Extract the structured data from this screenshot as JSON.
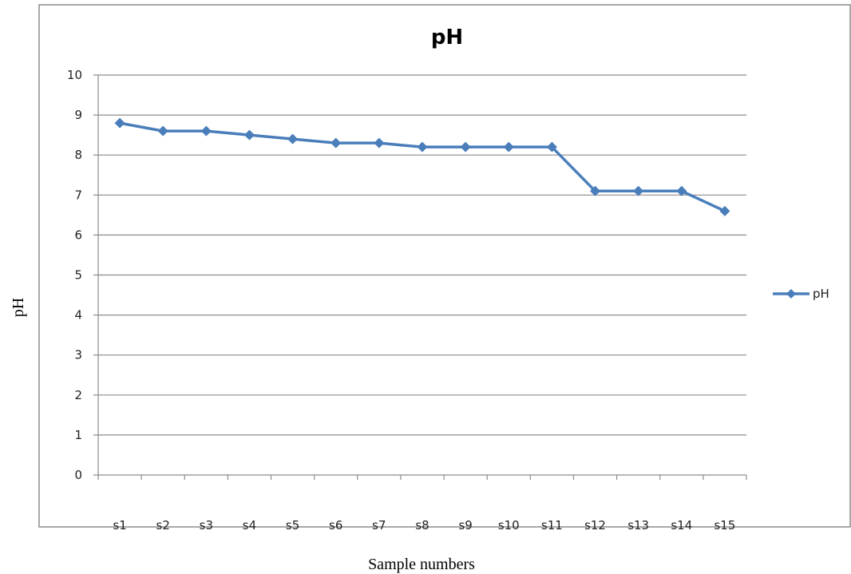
{
  "chart_data": {
    "type": "line",
    "title": "pH",
    "xlabel": "Sample numbers",
    "ylabel": "pH",
    "categories": [
      "s1",
      "s2",
      "s3",
      "s4",
      "s5",
      "s6",
      "s7",
      "s8",
      "s9",
      "s10",
      "s11",
      "s12",
      "s13",
      "s14",
      "s15"
    ],
    "y_ticks": [
      "0",
      "1",
      "2",
      "3",
      "4",
      "5",
      "6",
      "7",
      "8",
      "9",
      "10"
    ],
    "ylim": [
      0,
      10
    ],
    "grid": true,
    "legend_position": "right",
    "series": [
      {
        "name": "pH",
        "color": "#4a7ebb",
        "marker": "diamond",
        "values": [
          8.8,
          8.6,
          8.6,
          8.5,
          8.4,
          8.3,
          8.3,
          8.2,
          8.2,
          8.2,
          8.2,
          7.1,
          7.1,
          7.1,
          6.6
        ]
      }
    ]
  }
}
